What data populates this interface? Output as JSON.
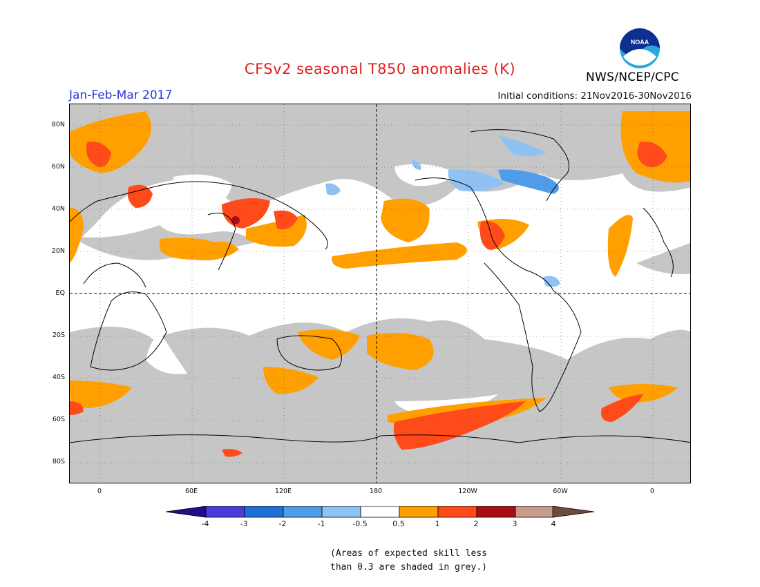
{
  "title": "CFSv2 seasonal T850 anomalies (K)",
  "period": "Jan-Feb-Mar 2017",
  "initial_conditions": "Initial conditions: 21Nov2016-30Nov2016",
  "agency": "NWS/NCEP/CPC",
  "logo_text": "NOAA",
  "lat_labels": [
    "80N",
    "60N",
    "40N",
    "20N",
    "EQ",
    "20S",
    "40S",
    "60S",
    "80S"
  ],
  "lon_labels": [
    "0",
    "60E",
    "120E",
    "180",
    "120W",
    "60W",
    "0"
  ],
  "colorbar": {
    "labels": [
      "-4",
      "-3",
      "-2",
      "-1",
      "-0.5",
      "0.5",
      "1",
      "2",
      "3",
      "4"
    ],
    "colors": [
      "#1e0f8c",
      "#4b3cd6",
      "#2170d8",
      "#4f9ce8",
      "#8fc2f2",
      "#ffffff",
      "#ff9f00",
      "#ff4a1a",
      "#a50f15",
      "#c79c8c",
      "#6e4a3c"
    ]
  },
  "footnote": [
    "(Areas of expected skill less",
    "than 0.3 are shaded in grey.)"
  ],
  "colors": {
    "grey_low_skill": "#c6c6c6",
    "title": "#e0201c",
    "period": "#2b35d8"
  }
}
